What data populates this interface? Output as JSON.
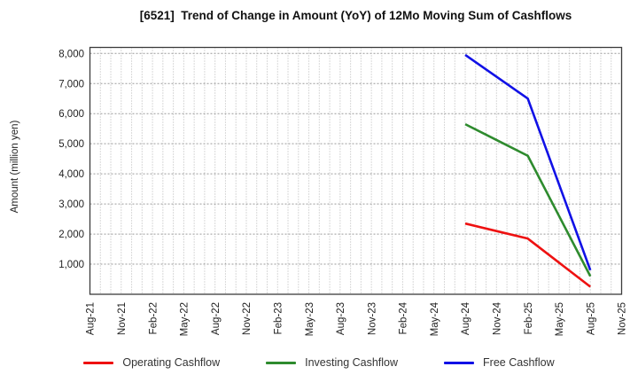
{
  "chart": {
    "title": "[6521]  Trend of Change in Amount (YoY) of 12Mo Moving Sum of Cashflows",
    "ylabel": "Amount (million yen)"
  },
  "chart_data": {
    "type": "line",
    "title": "[6521]  Trend of Change in Amount (YoY) of 12Mo Moving Sum of Cashflows",
    "xlabel": "",
    "ylabel": "Amount (million yen)",
    "x_labels": [
      "Aug-21",
      "Nov-21",
      "Feb-22",
      "May-22",
      "Aug-22",
      "Nov-22",
      "Feb-23",
      "May-23",
      "Aug-23",
      "Nov-23",
      "Feb-24",
      "May-24",
      "Aug-24",
      "Nov-24",
      "Feb-25",
      "May-25",
      "Aug-25",
      "Nov-25"
    ],
    "ylim": [
      0,
      8200
    ],
    "yticks": [
      1000,
      2000,
      3000,
      4000,
      5000,
      6000,
      7000,
      8000
    ],
    "grid": "dotted; vertical lines monthly, horizontal lines every 1000",
    "legend_position": "bottom",
    "series": [
      {
        "name": "Operating Cashflow",
        "color": "#ee1111",
        "values": [
          null,
          null,
          null,
          null,
          null,
          null,
          null,
          null,
          null,
          null,
          null,
          null,
          2350,
          2100,
          1850,
          1050,
          250,
          null
        ]
      },
      {
        "name": "Investing Cashflow",
        "color": "#2e8b2e",
        "values": [
          null,
          null,
          null,
          null,
          null,
          null,
          null,
          null,
          null,
          null,
          null,
          null,
          5650,
          5125,
          4600,
          2600,
          600,
          null
        ]
      },
      {
        "name": "Free Cashflow",
        "color": "#1111e6",
        "values": [
          null,
          null,
          null,
          null,
          null,
          null,
          null,
          null,
          null,
          null,
          null,
          null,
          7950,
          7225,
          6500,
          3650,
          800,
          null
        ]
      }
    ]
  }
}
